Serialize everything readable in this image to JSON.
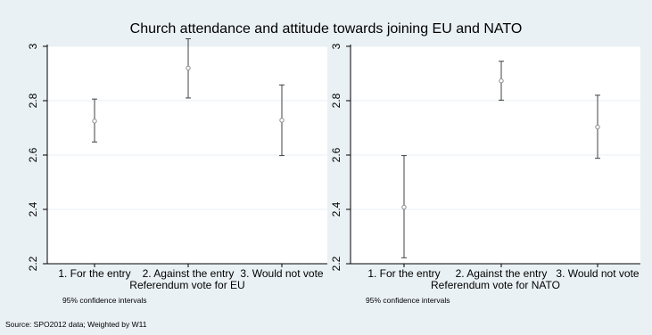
{
  "figure": {
    "title": "Church attendance and attitude towards joining EU and NATO",
    "source": "Source: SPO2012 data; Weighted by W11"
  },
  "chart_data": [
    {
      "type": "scatter",
      "subtype": "point-with-error-bars",
      "categories": [
        "1. For the entry",
        "2. Against the entry",
        "3. Would not vote"
      ],
      "values": [
        2.725,
        2.92,
        2.728
      ],
      "ci_low": [
        2.648,
        2.81,
        2.598
      ],
      "ci_high": [
        2.806,
        3.028,
        2.858
      ],
      "xlabel": "Referendum vote for EU",
      "ylabel": "",
      "ylim": [
        2.2,
        3.0
      ],
      "yticks": [
        2.2,
        2.4,
        2.6,
        2.8,
        3.0
      ],
      "ytick_labels": [
        "2.2",
        "2.4",
        "2.6",
        "2.8",
        "3"
      ],
      "grid": true,
      "note": "95% confidence intervals",
      "colors": {
        "plot_bg": "#ffffff",
        "outer_bg": "#eaf1f4",
        "grid": "#eaf1f4",
        "marker": "#8c8c8c",
        "error_bar": "#404040",
        "axis": "#000000"
      }
    },
    {
      "type": "scatter",
      "subtype": "point-with-error-bars",
      "categories": [
        "1. For the entry",
        "2. Against the entry",
        "3. Would not vote"
      ],
      "values": [
        2.408,
        2.873,
        2.703
      ],
      "ci_low": [
        2.222,
        2.802,
        2.588
      ],
      "ci_high": [
        2.598,
        2.945,
        2.82
      ],
      "xlabel": "Referendum vote for NATO",
      "ylabel": "",
      "ylim": [
        2.2,
        3.0
      ],
      "yticks": [
        2.2,
        2.4,
        2.6,
        2.8,
        3.0
      ],
      "ytick_labels": [
        "2.2",
        "2.4",
        "2.6",
        "2.8",
        "3"
      ],
      "grid": true,
      "note": "95% confidence intervals",
      "colors": {
        "plot_bg": "#ffffff",
        "outer_bg": "#eaf1f4",
        "grid": "#eaf1f4",
        "marker": "#8c8c8c",
        "error_bar": "#404040",
        "axis": "#000000"
      }
    }
  ]
}
